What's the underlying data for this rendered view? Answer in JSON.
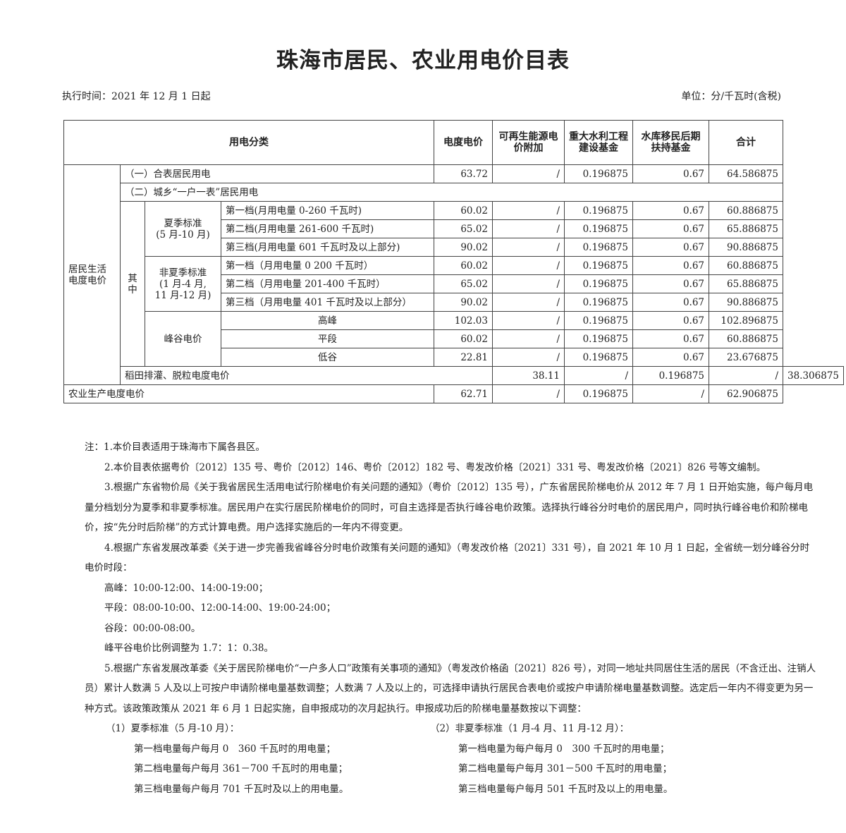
{
  "title": "珠海市居民、农业用电价目表",
  "effective": "执行时间：2021 年 12 月 1 日起",
  "unit": "单位：分/千瓦时(含税)",
  "table": {
    "headers": [
      "用电分类",
      "电度电价",
      "可再生能源电价附加",
      "重大水利工程建设基金",
      "水库移民后期扶持基金",
      "合计"
    ],
    "residential_label": "居民生活电度电价",
    "qizhong_label": "其中",
    "combined": {
      "label": "（一）合表居民用电",
      "values": [
        "63.72",
        "/",
        "0.196875",
        "0.67",
        "64.586875"
      ]
    },
    "one_meter_label": "（二）城乡“一户一表”居民用电",
    "groups": [
      {
        "label": "夏季标准\n(5 月-10 月)",
        "rows": [
          {
            "label": "第一档(月用电量 0-260 千瓦时)",
            "values": [
              "60.02",
              "/",
              "0.196875",
              "0.67",
              "60.886875"
            ]
          },
          {
            "label": "第二档(月用电量 261-600 千瓦时)",
            "values": [
              "65.02",
              "/",
              "0.196875",
              "0.67",
              "65.886875"
            ]
          },
          {
            "label": "第三档(月用电量 601 千瓦时及以上部分)",
            "values": [
              "90.02",
              "/",
              "0.196875",
              "0.67",
              "90.886875"
            ]
          }
        ]
      },
      {
        "label": "非夏季标准\n(1 月-4 月,\n11 月-12 月)",
        "rows": [
          {
            "label": "第一档（月用电量 0 200 千瓦时）",
            "values": [
              "60.02",
              "/",
              "0.196875",
              "0.67",
              "60.886875"
            ]
          },
          {
            "label": "第二档（月用电量 201-400 千瓦时）",
            "values": [
              "65.02",
              "/",
              "0.196875",
              "0.67",
              "65.886875"
            ]
          },
          {
            "label": "第三档（月用电量 401 千瓦时及以上部分）",
            "values": [
              "90.02",
              "/",
              "0.196875",
              "0.67",
              "90.886875"
            ]
          }
        ]
      },
      {
        "label": "峰谷电价",
        "center": true,
        "rows": [
          {
            "label": "高峰",
            "values": [
              "102.03",
              "/",
              "0.196875",
              "0.67",
              "102.896875"
            ]
          },
          {
            "label": "平段",
            "values": [
              "60.02",
              "/",
              "0.196875",
              "0.67",
              "60.886875"
            ]
          },
          {
            "label": "低谷",
            "values": [
              "22.81",
              "/",
              "0.196875",
              "0.67",
              "23.676875"
            ]
          }
        ]
      }
    ],
    "others": [
      {
        "label": "稻田排灌、脱粒电度电价",
        "values": [
          "38.11",
          "/",
          "0.196875",
          "/",
          "38.306875"
        ]
      },
      {
        "label": "农业生产电度电价",
        "values": [
          "62.71",
          "/",
          "0.196875",
          "/",
          "62.906875"
        ]
      }
    ]
  },
  "notes": [
    "注：1.本价目表适用于珠海市下属各县区。",
    "2.本价目表依据粤价〔2012〕135 号、粤价〔2012〕146、粤价〔2012〕182 号、粤发改价格〔2021〕331 号、粤发改价格〔2021〕826 号等文编制。",
    "3.根据广东省物价局《关于我省居民生活用电试行阶梯电价有关问题的通知》（粤价〔2012〕135 号），广东省居民阶梯电价从 2012 年 7 月 1 日开始实施，每户每月电量分档划分为夏季和非夏季标准。居民用户在实行居民阶梯电价的同时，可自主选择是否执行峰谷电价政策。选择执行峰谷分时电价的居民用户，同时执行峰谷电价和阶梯电价，按“先分时后阶梯”的方式计算电费。用户选择实施后的一年内不得变更。",
    "4.根据广东省发展改革委《关于进一步完善我省峰谷分时电价政策有关问题的通知》（粤发改价格〔2021〕331 号），自 2021 年 10 月 1 日起，全省统一划分峰谷分时电价时段："
  ],
  "periods": [
    "高峰：10:00-12:00、14:00-19:00；",
    "平段：08:00-10:00、12:00-14:00、19:00-24:00；",
    "谷段：00:00-08:00。",
    "峰平谷电价比例调整为 1.7：1：0.38。"
  ],
  "note5": "5.根据广东省发展改革委《关于居民阶梯电价“一户多人口”政策有关事项的通知》（粤发改价格函〔2021〕826 号），对同一地址共同居住生活的居民（不含迁出、注销人员）累计人数满 5 人及以上可按户申请阶梯电量基数调整；人数满 7 人及以上的，可选择申请执行居民合表电价或按户申请阶梯电量基数调整。选定后一年内不得变更为另一种方式。该政策政策从 2021 年 6 月 1 日起实施，自申报成功的次月起执行。申报成功后的阶梯电量基数按以下调整：",
  "summer": {
    "title": "（1）夏季标准（5 月-10 月）：",
    "items": [
      "第一档电量每户每月 0　360 千瓦时的用电量；",
      "第二档电量每户每月 361－700 千瓦时的用电量；",
      "第三档电量每户每月 701 千瓦时及以上的用电量。"
    ]
  },
  "nonsummer": {
    "title": "（2）非夏季标准（1 月-4 月、11 月-12 月）：",
    "items": [
      "第一档电量为每户每月 0　300 千瓦时的用电量；",
      "第二档电量每户每月 301－500 千瓦时的用电量；",
      "第三档电量每户每月 501 千瓦时及以上的用电量。"
    ]
  }
}
